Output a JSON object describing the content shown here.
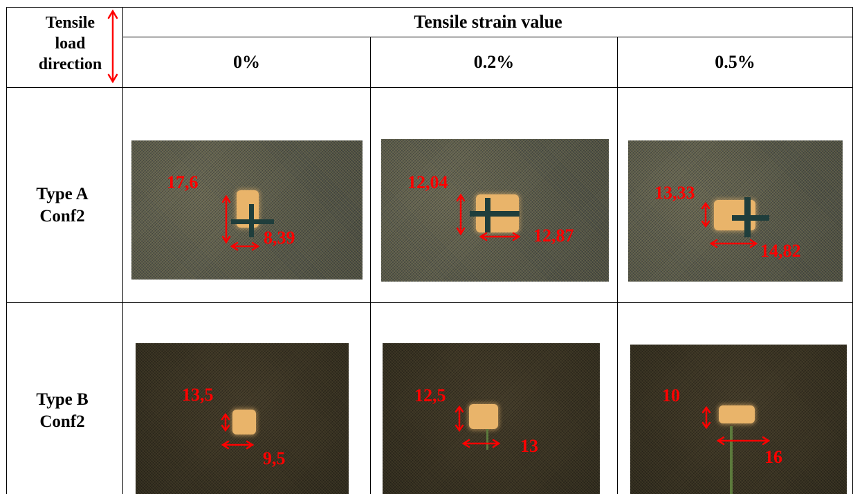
{
  "header": {
    "corner_line1": "Tensile",
    "corner_line2": "load",
    "corner_line3": "direction",
    "span_title": "Tensile strain value",
    "columns": [
      "0%",
      "0.2%",
      "0.5%"
    ]
  },
  "rows": [
    {
      "label_line1": "Type A",
      "label_line2": "Conf2",
      "cells": [
        {
          "height": "17,6",
          "width": "8,39"
        },
        {
          "height": "12,04",
          "width": "12,87"
        },
        {
          "height": "13,33",
          "width": "14,82"
        }
      ]
    },
    {
      "label_line1": "Type B",
      "label_line2": "Conf2",
      "cells": [
        {
          "height": "13,5",
          "width": "9,5"
        },
        {
          "height": "12,5",
          "width": "13"
        },
        {
          "height": "10",
          "width": "16"
        }
      ]
    }
  ],
  "colors": {
    "annotation": "#ff0000",
    "grid": "#000000",
    "fabric_a": "#575a50",
    "fabric_b": "#3a3426"
  }
}
